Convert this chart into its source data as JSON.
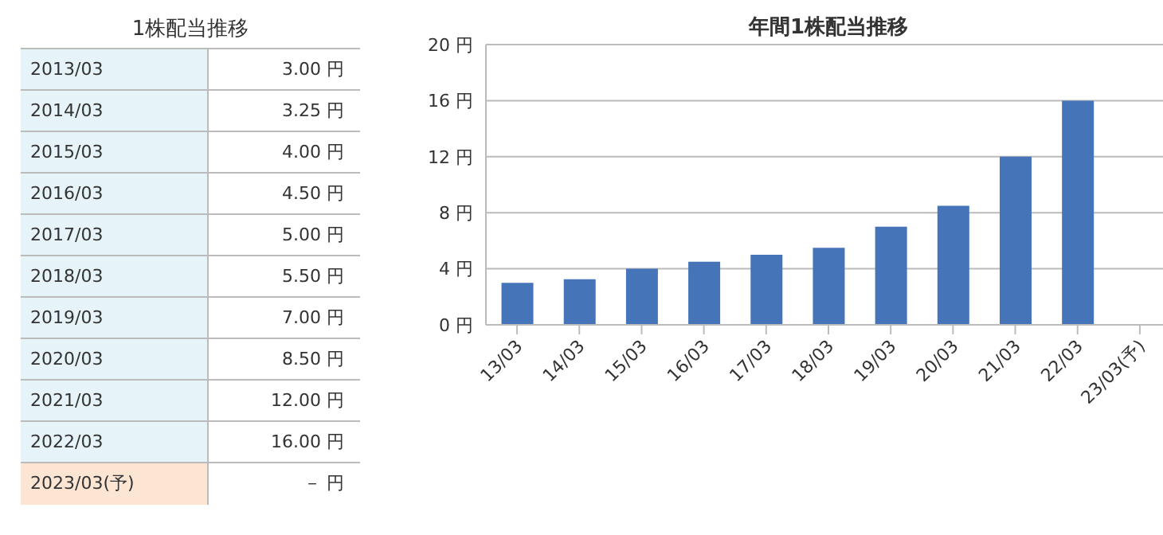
{
  "chart_data": [
    {
      "type": "other",
      "title": "1株配当推移",
      "categories": [
        "2013/03",
        "2014/03",
        "2015/03",
        "2016/03",
        "2017/03",
        "2018/03",
        "2019/03",
        "2020/03",
        "2021/03",
        "2022/03",
        "2023/03(予)"
      ],
      "value_labels": [
        "3.00 円",
        "3.25 円",
        "4.00 円",
        "4.50 円",
        "5.00 円",
        "5.50 円",
        "7.00 円",
        "8.50 円",
        "12.00 円",
        "16.00 円",
        "－ 円"
      ]
    },
    {
      "type": "bar",
      "title": "年間1株配当推移",
      "categories": [
        "13/03",
        "14/03",
        "15/03",
        "16/03",
        "17/03",
        "18/03",
        "19/03",
        "20/03",
        "21/03",
        "22/03",
        "23/03(予)"
      ],
      "values": [
        3.0,
        3.25,
        4.0,
        4.5,
        5.0,
        5.5,
        7.0,
        8.5,
        12.0,
        16.0,
        null
      ],
      "color": "#4575b8",
      "ylim": [
        0,
        20
      ],
      "yticks": [
        {
          "value": 0,
          "label": "0 円"
        },
        {
          "value": 4,
          "label": "4 円"
        },
        {
          "value": 8,
          "label": "8 円"
        },
        {
          "value": 12,
          "label": "12 円"
        },
        {
          "value": 16,
          "label": "16 円"
        },
        {
          "value": 20,
          "label": "20 円"
        }
      ],
      "grid": "y"
    }
  ]
}
